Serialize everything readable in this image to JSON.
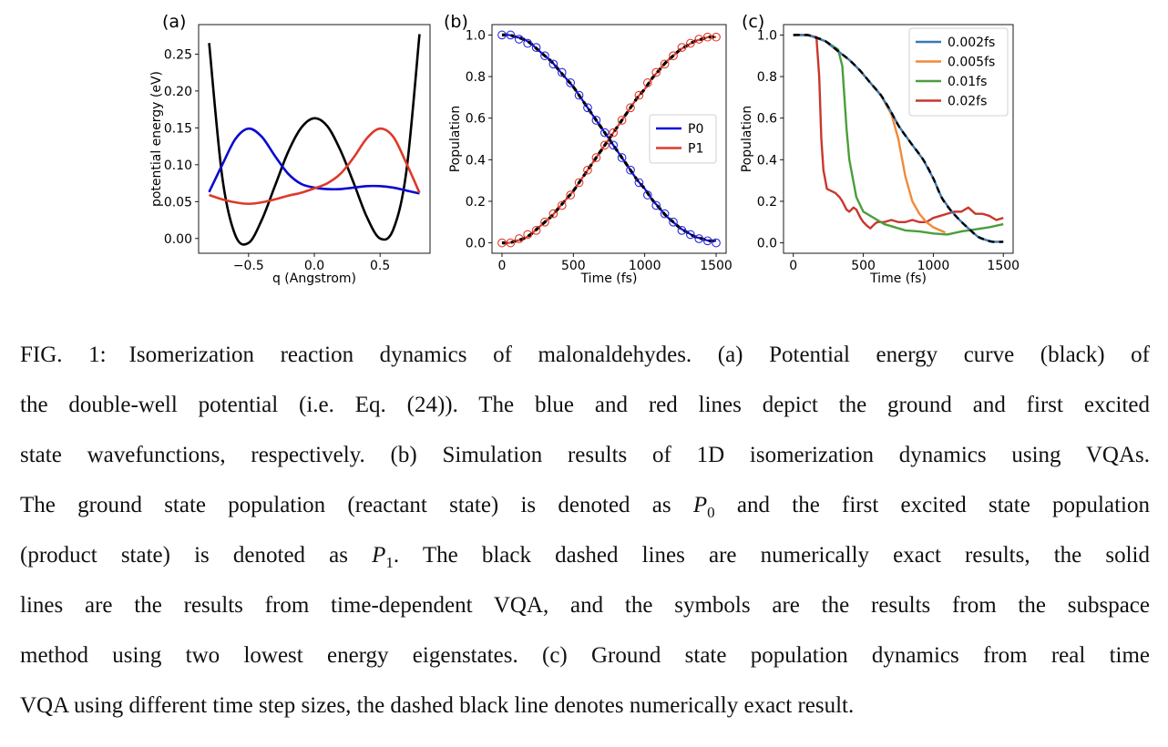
{
  "figure": {
    "panels": [
      {
        "label": "(a)",
        "chart_data": {
          "type": "line",
          "xlabel": "q (Angstrom)",
          "ylabel": "potential energy (eV)",
          "xlim": [
            -0.88,
            0.88
          ],
          "ylim": [
            -0.02,
            0.29
          ],
          "xticks": [
            -0.5,
            0.0,
            0.5
          ],
          "xtick_labels": [
            "−0.5",
            "0.0",
            "0.5"
          ],
          "yticks": [
            0.0,
            0.05,
            0.1,
            0.15,
            0.2,
            0.25
          ],
          "ytick_labels": [
            "0.00",
            "0.05",
            "0.10",
            "0.15",
            "0.20",
            "0.25"
          ],
          "grid": false,
          "x": [
            -0.8,
            -0.7,
            -0.6,
            -0.5,
            -0.4,
            -0.3,
            -0.2,
            -0.1,
            0,
            0.1,
            0.2,
            0.3,
            0.4,
            0.5,
            0.6,
            0.7,
            0.8
          ],
          "series": [
            {
              "color": "#000000",
              "values": [
                0.265,
                0.083,
                0.004,
                -0.006,
                0.025,
                0.071,
                0.117,
                0.15,
                0.163,
                0.152,
                0.119,
                0.075,
                0.029,
                0.0,
                0.012,
                0.091,
                0.277
              ]
            },
            {
              "color": "#0a0ad0",
              "values": [
                0.063,
                0.1,
                0.135,
                0.149,
                0.138,
                0.112,
                0.088,
                0.074,
                0.069,
                0.067,
                0.067,
                0.069,
                0.071,
                0.071,
                0.069,
                0.065,
                0.061
              ]
            },
            {
              "color": "#dd3a2a",
              "values": [
                0.059,
                0.053,
                0.049,
                0.047,
                0.049,
                0.053,
                0.058,
                0.062,
                0.068,
                0.075,
                0.088,
                0.11,
                0.136,
                0.149,
                0.138,
                0.102,
                0.062
              ]
            }
          ]
        }
      },
      {
        "label": "(b)",
        "chart_data": {
          "type": "line",
          "xlabel": "Time (fs)",
          "ylabel": "Population",
          "xlim": [
            -70,
            1570
          ],
          "ylim": [
            -0.05,
            1.05
          ],
          "xticks": [
            0,
            500,
            1000,
            1500
          ],
          "xtick_labels": [
            "0",
            "500",
            "1000",
            "1500"
          ],
          "yticks": [
            0,
            0.2,
            0.4,
            0.6,
            0.8,
            1.0
          ],
          "ytick_labels": [
            "0.0",
            "0.2",
            "0.4",
            "0.6",
            "0.8",
            "1.0"
          ],
          "grid": false,
          "legend": "center-right",
          "x": [
            0,
            50,
            100,
            150,
            200,
            250,
            300,
            350,
            400,
            450,
            500,
            550,
            600,
            650,
            700,
            750,
            800,
            850,
            900,
            950,
            1000,
            1050,
            1100,
            1150,
            1200,
            1250,
            1300,
            1350,
            1400,
            1450,
            1500
          ],
          "series": [
            {
              "name": "P0",
              "color": "#0a0ae0",
              "values": [
                1.0,
                1.0,
                0.99,
                0.98,
                0.96,
                0.93,
                0.9,
                0.87,
                0.83,
                0.79,
                0.75,
                0.7,
                0.65,
                0.6,
                0.55,
                0.5,
                0.45,
                0.4,
                0.35,
                0.3,
                0.26,
                0.21,
                0.17,
                0.13,
                0.1,
                0.07,
                0.05,
                0.03,
                0.02,
                0.01,
                0.01
              ]
            },
            {
              "name": "P1",
              "color": "#e03a2a",
              "values": [
                0,
                0,
                0.01,
                0.02,
                0.04,
                0.07,
                0.1,
                0.13,
                0.17,
                0.21,
                0.25,
                0.3,
                0.35,
                0.4,
                0.45,
                0.5,
                0.55,
                0.6,
                0.65,
                0.7,
                0.74,
                0.79,
                0.83,
                0.87,
                0.9,
                0.93,
                0.95,
                0.97,
                0.98,
                0.99,
                0.99
              ]
            }
          ],
          "exact_color": "#000000",
          "markers": {
            "x": [
              0,
              60,
              120,
              180,
              240,
              300,
              360,
              420,
              480,
              540,
              600,
              660,
              720,
              780,
              840,
              900,
              960,
              1020,
              1080,
              1140,
              1200,
              1260,
              1320,
              1380,
              1440,
              1500
            ],
            "series": [
              {
                "color": "#2a2ae0",
                "values": [
                  1.0,
                  1.0,
                  0.98,
                  0.96,
                  0.94,
                  0.9,
                  0.86,
                  0.82,
                  0.77,
                  0.71,
                  0.65,
                  0.59,
                  0.53,
                  0.47,
                  0.41,
                  0.35,
                  0.29,
                  0.23,
                  0.18,
                  0.14,
                  0.1,
                  0.06,
                  0.04,
                  0.02,
                  0.01,
                  0.0
                ]
              },
              {
                "color": "#e03a2a",
                "values": [
                  0,
                  0,
                  0.02,
                  0.04,
                  0.06,
                  0.1,
                  0.14,
                  0.18,
                  0.23,
                  0.29,
                  0.35,
                  0.41,
                  0.47,
                  0.53,
                  0.59,
                  0.65,
                  0.71,
                  0.77,
                  0.82,
                  0.86,
                  0.9,
                  0.94,
                  0.96,
                  0.98,
                  0.99,
                  0.99
                ]
              }
            ]
          }
        }
      },
      {
        "label": "(c)",
        "chart_data": {
          "type": "line",
          "xlabel": "Time (fs)",
          "ylabel": "Population",
          "xlim": [
            -70,
            1570
          ],
          "ylim": [
            -0.05,
            1.05
          ],
          "xticks": [
            0,
            500,
            1000,
            1500
          ],
          "xtick_labels": [
            "0",
            "500",
            "1000",
            "1500"
          ],
          "yticks": [
            0,
            0.2,
            0.4,
            0.6,
            0.8,
            1.0
          ],
          "ytick_labels": [
            "0.0",
            "0.2",
            "0.4",
            "0.6",
            "0.8",
            "1.0"
          ],
          "grid": false,
          "legend": "top-right",
          "series": [
            {
              "name": "0.002fs",
              "color": "#3a78b4",
              "x": [
                0,
                100,
                150,
                230,
                324,
                400,
                475,
                550,
                626,
                690,
                755,
                840,
                928,
                1000,
                1058,
                1120,
                1187,
                1250,
                1317,
                1370,
                1424,
                1500
              ],
              "values": [
                1.0,
                1.0,
                0.99,
                0.97,
                0.92,
                0.88,
                0.83,
                0.77,
                0.71,
                0.64,
                0.56,
                0.48,
                0.4,
                0.31,
                0.22,
                0.16,
                0.11,
                0.07,
                0.03,
                0.015,
                0.005,
                0.005
              ]
            },
            {
              "name": "0.005fs",
              "color": "#f08a3a",
              "x": [
                0,
                100,
                150,
                230,
                324,
                400,
                475,
                550,
                626,
                650,
                700,
                750,
                800,
                850,
                900,
                950,
                1000,
                1050,
                1085
              ],
              "values": [
                1.0,
                1.0,
                0.99,
                0.97,
                0.92,
                0.88,
                0.83,
                0.77,
                0.71,
                0.68,
                0.62,
                0.5,
                0.32,
                0.2,
                0.14,
                0.1,
                0.075,
                0.06,
                0.05
              ]
            },
            {
              "name": "0.01fs",
              "color": "#4a9e3a",
              "x": [
                0,
                100,
                150,
                230,
                320,
                350,
                380,
                400,
                450,
                500,
                550,
                600,
                650,
                700,
                800,
                900,
                1000,
                1100,
                1200,
                1300,
                1400,
                1500
              ],
              "values": [
                1.0,
                1.0,
                0.99,
                0.97,
                0.93,
                0.85,
                0.55,
                0.4,
                0.22,
                0.15,
                0.13,
                0.11,
                0.09,
                0.08,
                0.06,
                0.055,
                0.045,
                0.04,
                0.055,
                0.065,
                0.075,
                0.09
              ]
            },
            {
              "name": "0.02fs",
              "color": "#c9372c",
              "x": [
                0,
                100,
                165,
                185,
                200,
                215,
                240,
                270,
                300,
                330,
                350,
                380,
                400,
                430,
                450,
                480,
                500,
                530,
                550,
                580,
                600,
                650,
                700,
                750,
                800,
                850,
                900,
                950,
                1000,
                1050,
                1100,
                1150,
                1200,
                1250,
                1300,
                1350,
                1400,
                1450,
                1500
              ],
              "values": [
                1.0,
                1.0,
                0.99,
                0.8,
                0.5,
                0.35,
                0.26,
                0.25,
                0.24,
                0.22,
                0.2,
                0.16,
                0.15,
                0.17,
                0.16,
                0.12,
                0.1,
                0.08,
                0.07,
                0.09,
                0.1,
                0.1,
                0.11,
                0.1,
                0.1,
                0.11,
                0.1,
                0.1,
                0.12,
                0.13,
                0.14,
                0.15,
                0.15,
                0.17,
                0.14,
                0.14,
                0.13,
                0.11,
                0.12
              ]
            }
          ],
          "exact": {
            "color": "#000000",
            "x": [
              0,
              100,
              150,
              230,
              324,
              400,
              475,
              550,
              626,
              690,
              755,
              840,
              928,
              1000,
              1058,
              1120,
              1187,
              1250,
              1317,
              1370,
              1424,
              1500
            ],
            "values": [
              1.0,
              1.0,
              0.99,
              0.97,
              0.92,
              0.88,
              0.83,
              0.77,
              0.71,
              0.64,
              0.56,
              0.48,
              0.4,
              0.31,
              0.22,
              0.16,
              0.11,
              0.07,
              0.03,
              0.015,
              0.005,
              0.005
            ]
          }
        }
      }
    ]
  },
  "caption": {
    "lines": [
      {
        "text": "FIG. 1: Isomerization reaction dynamics of malonaldehydes. (a) Potential energy curve (black) of"
      },
      {
        "text": "the double-well potential (i.e. Eq. (24)). The blue and red lines depict the ground and first excited"
      },
      {
        "text": "state wavefunctions, respectively. (b) Simulation results of 1D isomerization dynamics using VQAs."
      },
      {
        "pre": "The ground state population (reactant state) is denoted as ",
        "math": "P",
        "sub": "0",
        "post": " and the first excited state population"
      },
      {
        "pre": "(product state) is denoted as ",
        "math": "P",
        "sub": "1",
        "post": ". The black dashed lines are numerically exact results, the solid"
      },
      {
        "text": "lines are the results from time-dependent VQA, and the symbols are the results from the subspace"
      },
      {
        "text": "method using two lowest energy eigenstates. (c) Ground state population dynamics from real time"
      },
      {
        "text": "VQA using different time step sizes, the dashed black line denotes numerically exact result."
      }
    ]
  }
}
